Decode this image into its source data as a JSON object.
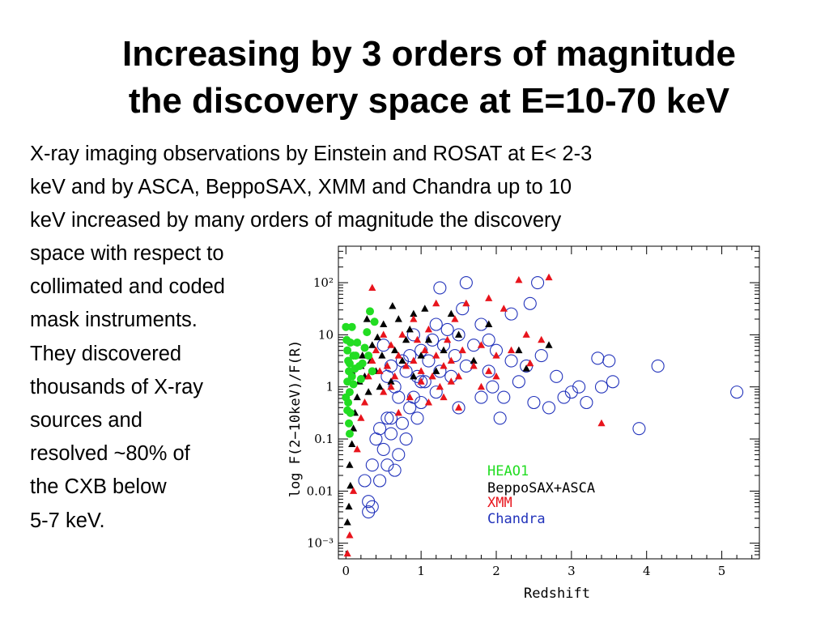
{
  "title": {
    "line1": "Increasing by 3 orders of magnitude",
    "line2": "the discovery space at E=10-70 keV"
  },
  "intro_lines": [
    "X-ray imaging observations  by Einstein and ROSAT at E< 2-3",
    "keV and by ASCA, BeppoSAX, XMM and Chandra up to 10",
    "keV increased by many orders of magnitude the discovery"
  ],
  "side_lines": [
    "space with respect to",
    "collimated and coded",
    "mask instruments.",
    "They discovered",
    "thousands  of  X-ray",
    "sources and",
    "resolved  ~80% of",
    "the CXB below",
    "5-7 keV."
  ],
  "chart_data": {
    "type": "scatter",
    "xlabel": "Redshift",
    "ylabel": "log  F(2−10keV)/F(R)",
    "xlim": [
      -0.1,
      5.5
    ],
    "ylim": [
      -3.3,
      2.7
    ],
    "x_ticks": [
      "0",
      "1",
      "2",
      "3",
      "4",
      "5"
    ],
    "y_ticks": [
      "10⁻³",
      "0.01",
      "0.1",
      "1",
      "10",
      "10²"
    ],
    "y_tick_values": [
      -3,
      -2,
      -1,
      0,
      1,
      2
    ],
    "legend_position": "inside-bottom-right",
    "colors": {
      "heao1": "#22dd22",
      "beppo": "#000000",
      "xmm": "#e8141c",
      "chandra": "#2233bb"
    },
    "series": [
      {
        "name": "HEAO1",
        "marker": "filled-circle",
        "points": [
          [
            0.0,
            1.15
          ],
          [
            0.01,
            0.9
          ],
          [
            0.02,
            0.7
          ],
          [
            0.03,
            0.5
          ],
          [
            0.04,
            0.3
          ],
          [
            0.02,
            0.1
          ],
          [
            0.05,
            -0.1
          ],
          [
            0.03,
            -0.3
          ],
          [
            0.06,
            -0.5
          ],
          [
            0.04,
            -0.7
          ],
          [
            0.05,
            -0.9
          ],
          [
            0.06,
            0.85
          ],
          [
            0.08,
            1.15
          ],
          [
            0.1,
            0.6
          ],
          [
            0.12,
            0.35
          ],
          [
            0.1,
            0.05
          ],
          [
            0.13,
            0.6
          ],
          [
            0.15,
            0.85
          ],
          [
            0.18,
            0.4
          ],
          [
            0.2,
            0.15
          ],
          [
            0.22,
            0.45
          ],
          [
            0.25,
            0.75
          ],
          [
            0.3,
            0.6
          ],
          [
            0.35,
            0.3
          ],
          [
            0.38,
            1.25
          ],
          [
            0.32,
            1.45
          ],
          [
            0.28,
            1.05
          ],
          [
            0.05,
            0.45
          ],
          [
            0.02,
            -0.45
          ],
          [
            0.0,
            -0.2
          ],
          [
            0.08,
            0.2
          ]
        ]
      },
      {
        "name": "BeppoSAX+ASCA",
        "marker": "filled-triangle",
        "points": [
          [
            0.02,
            -2.6
          ],
          [
            0.04,
            -2.3
          ],
          [
            0.06,
            -1.9
          ],
          [
            0.05,
            -1.5
          ],
          [
            0.08,
            -1.1
          ],
          [
            0.1,
            -0.8
          ],
          [
            0.12,
            -0.5
          ],
          [
            0.15,
            -0.2
          ],
          [
            0.18,
            0.1
          ],
          [
            0.2,
            0.4
          ],
          [
            0.22,
            0.6
          ],
          [
            0.25,
            0.2
          ],
          [
            0.3,
            -0.1
          ],
          [
            0.33,
            0.5
          ],
          [
            0.35,
            0.8
          ],
          [
            0.4,
            0.3
          ],
          [
            0.45,
            0.0
          ],
          [
            0.48,
            0.6
          ],
          [
            0.5,
            1.2
          ],
          [
            0.55,
            0.4
          ],
          [
            0.6,
            0.1
          ],
          [
            0.65,
            0.7
          ],
          [
            0.7,
            1.3
          ],
          [
            0.75,
            0.5
          ],
          [
            0.8,
            0.9
          ],
          [
            0.85,
            1.1
          ],
          [
            0.9,
            0.2
          ],
          [
            1.0,
            0.6
          ],
          [
            1.05,
            1.5
          ],
          [
            1.1,
            0.9
          ],
          [
            1.2,
            0.3
          ],
          [
            1.3,
            0.7
          ],
          [
            1.4,
            1.4
          ],
          [
            1.5,
            1.0
          ],
          [
            1.7,
            0.5
          ],
          [
            1.9,
            1.2
          ],
          [
            2.3,
            0.7
          ],
          [
            2.7,
            0.8
          ],
          [
            2.4,
            0.35
          ],
          [
            0.15,
            0.85
          ],
          [
            0.28,
            1.3
          ],
          [
            0.42,
            0.95
          ],
          [
            0.62,
            1.55
          ],
          [
            0.9,
            1.4
          ],
          [
            0.08,
            0.3
          ]
        ]
      },
      {
        "name": "XMM",
        "marker": "filled-triangle",
        "points": [
          [
            0.02,
            -3.2
          ],
          [
            0.05,
            -2.85
          ],
          [
            0.1,
            -2.0
          ],
          [
            0.15,
            -1.2
          ],
          [
            0.2,
            -0.6
          ],
          [
            0.25,
            -0.3
          ],
          [
            0.3,
            0.2
          ],
          [
            0.35,
            0.5
          ],
          [
            0.4,
            0.7
          ],
          [
            0.45,
            0.3
          ],
          [
            0.5,
            -0.1
          ],
          [
            0.55,
            0.4
          ],
          [
            0.6,
            0.8
          ],
          [
            0.65,
            0.2
          ],
          [
            0.7,
            0.6
          ],
          [
            0.75,
            1.0
          ],
          [
            0.8,
            0.4
          ],
          [
            0.85,
            -0.2
          ],
          [
            0.9,
            0.5
          ],
          [
            0.95,
            0.9
          ],
          [
            1.0,
            0.3
          ],
          [
            1.05,
            0.7
          ],
          [
            1.1,
            1.1
          ],
          [
            1.15,
            0.2
          ],
          [
            1.2,
            0.6
          ],
          [
            1.25,
            0.0
          ],
          [
            1.3,
            0.4
          ],
          [
            1.35,
            0.9
          ],
          [
            1.4,
            0.5
          ],
          [
            1.45,
            1.3
          ],
          [
            1.5,
            0.2
          ],
          [
            1.55,
            0.7
          ],
          [
            1.6,
            1.6
          ],
          [
            1.7,
            0.4
          ],
          [
            1.8,
            0.8
          ],
          [
            1.9,
            0.3
          ],
          [
            2.0,
            0.6
          ],
          [
            2.1,
            1.5
          ],
          [
            2.2,
            0.7
          ],
          [
            2.4,
            1.0
          ],
          [
            2.6,
            0.9
          ],
          [
            2.7,
            2.1
          ],
          [
            2.3,
            2.05
          ],
          [
            1.9,
            1.7
          ],
          [
            1.2,
            1.6
          ],
          [
            0.9,
            1.3
          ],
          [
            0.35,
            1.9
          ],
          [
            0.6,
            0.0
          ],
          [
            0.7,
            -0.5
          ],
          [
            1.1,
            -0.3
          ],
          [
            1.3,
            -0.2
          ],
          [
            1.5,
            -0.4
          ],
          [
            1.8,
            0.0
          ],
          [
            2.0,
            0.2
          ],
          [
            0.5,
            1.0
          ],
          [
            1.0,
            0.1
          ],
          [
            1.4,
            0.1
          ],
          [
            2.45,
            0.45
          ],
          [
            3.4,
            -0.7
          ]
        ]
      },
      {
        "name": "Chandra",
        "marker": "open-circle",
        "points": [
          [
            0.25,
            -1.8
          ],
          [
            0.3,
            -2.2
          ],
          [
            0.35,
            -1.5
          ],
          [
            0.4,
            -1.0
          ],
          [
            0.45,
            -0.8
          ],
          [
            0.5,
            -1.2
          ],
          [
            0.55,
            -0.6
          ],
          [
            0.6,
            -0.9
          ],
          [
            0.65,
            -1.6
          ],
          [
            0.7,
            -1.3
          ],
          [
            0.75,
            -0.7
          ],
          [
            0.8,
            -1.0
          ],
          [
            0.85,
            -0.4
          ],
          [
            0.9,
            -0.2
          ],
          [
            0.95,
            -0.6
          ],
          [
            1.0,
            -0.3
          ],
          [
            1.05,
            0.1
          ],
          [
            1.1,
            0.5
          ],
          [
            1.15,
            0.9
          ],
          [
            1.2,
            1.2
          ],
          [
            1.25,
            0.3
          ],
          [
            1.3,
            0.8
          ],
          [
            1.35,
            1.1
          ],
          [
            1.4,
            0.2
          ],
          [
            1.45,
            0.6
          ],
          [
            1.5,
            1.0
          ],
          [
            1.55,
            1.5
          ],
          [
            1.6,
            0.4
          ],
          [
            1.7,
            0.8
          ],
          [
            1.8,
            1.2
          ],
          [
            1.9,
            0.3
          ],
          [
            2.0,
            0.7
          ],
          [
            2.1,
            -0.2
          ],
          [
            2.2,
            0.5
          ],
          [
            2.3,
            0.1
          ],
          [
            2.4,
            0.4
          ],
          [
            2.5,
            -0.3
          ],
          [
            2.6,
            0.6
          ],
          [
            2.7,
            -0.4
          ],
          [
            2.8,
            0.2
          ],
          [
            2.9,
            -0.2
          ],
          [
            3.0,
            -0.1
          ],
          [
            3.1,
            0.0
          ],
          [
            3.2,
            -0.3
          ],
          [
            3.35,
            0.55
          ],
          [
            3.4,
            0.0
          ],
          [
            3.5,
            0.5
          ],
          [
            3.55,
            0.1
          ],
          [
            4.15,
            0.4
          ],
          [
            3.9,
            -0.8
          ],
          [
            5.2,
            -0.1
          ],
          [
            2.45,
            1.6
          ],
          [
            2.55,
            2.0
          ],
          [
            2.2,
            1.4
          ],
          [
            1.6,
            2.0
          ],
          [
            1.25,
            1.9
          ],
          [
            1.9,
            0.9
          ],
          [
            0.5,
            0.8
          ],
          [
            0.6,
            0.4
          ],
          [
            0.65,
            0.0
          ],
          [
            0.7,
            -0.2
          ],
          [
            0.8,
            0.3
          ],
          [
            0.85,
            0.6
          ],
          [
            0.9,
            1.0
          ],
          [
            0.95,
            0.2
          ],
          [
            1.0,
            0.7
          ],
          [
            0.75,
            0.5
          ],
          [
            0.55,
            0.2
          ],
          [
            1.5,
            -0.4
          ],
          [
            1.8,
            -0.2
          ],
          [
            2.05,
            -0.6
          ],
          [
            1.95,
            0.0
          ],
          [
            1.2,
            -0.1
          ],
          [
            0.3,
            -2.4
          ],
          [
            0.45,
            -1.8
          ],
          [
            0.55,
            -1.5
          ],
          [
            0.35,
            -2.3
          ],
          [
            0.6,
            -0.6
          ],
          [
            1.0,
            0.1
          ]
        ]
      }
    ]
  }
}
